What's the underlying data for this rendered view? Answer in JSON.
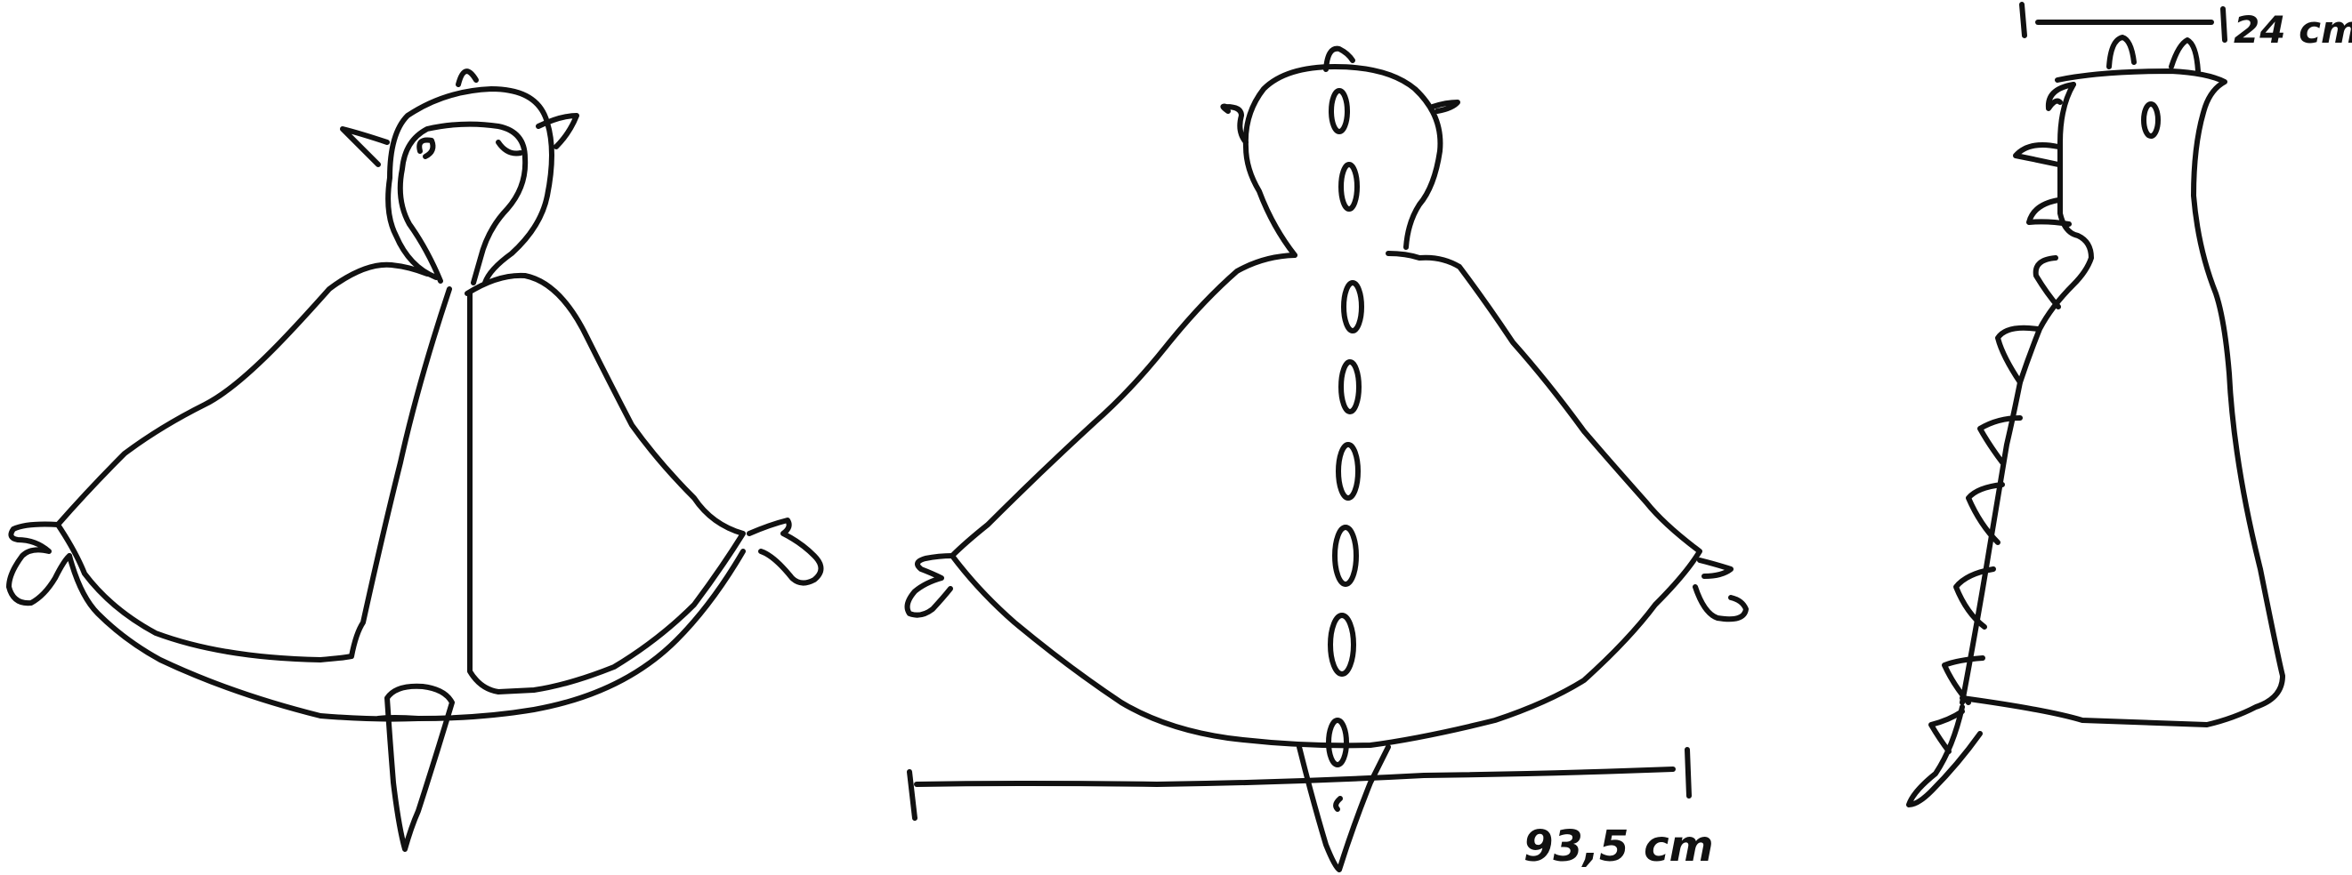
{
  "drawing": {
    "views": [
      "front-open",
      "back",
      "side"
    ],
    "stroke_color": "#111111",
    "background": "#ffffff"
  },
  "dimensions": {
    "width_label": "93,5 cm",
    "height_label": "24 cm"
  }
}
